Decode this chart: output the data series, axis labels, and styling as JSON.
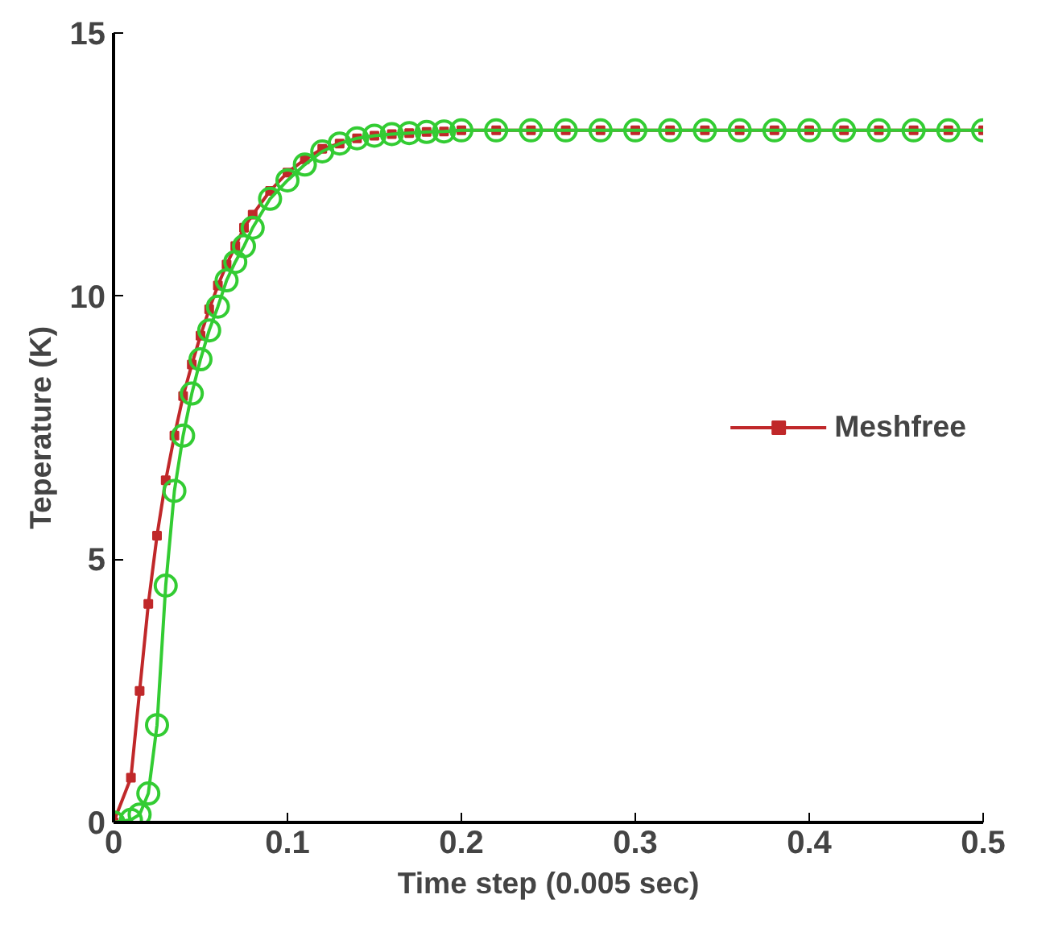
{
  "chart_data": {
    "type": "line",
    "xlabel": "Time step (0.005 sec)",
    "ylabel": "Teperature (K)",
    "xlim": [
      0,
      0.5
    ],
    "ylim": [
      0,
      15
    ],
    "xticks": [
      0,
      0.1,
      0.2,
      0.3,
      0.4,
      0.5
    ],
    "yticks": [
      0,
      5,
      10,
      15
    ],
    "grid": false,
    "legend": "right",
    "series": [
      {
        "name": "Meshfree",
        "color": "#c0282a",
        "marker": "square",
        "x": [
          0,
          0.01,
          0.015,
          0.02,
          0.025,
          0.03,
          0.035,
          0.04,
          0.045,
          0.05,
          0.055,
          0.06,
          0.065,
          0.07,
          0.075,
          0.08,
          0.09,
          0.1,
          0.11,
          0.12,
          0.13,
          0.14,
          0.15,
          0.16,
          0.17,
          0.18,
          0.19,
          0.2,
          0.22,
          0.24,
          0.26,
          0.28,
          0.3,
          0.32,
          0.34,
          0.36,
          0.38,
          0.4,
          0.42,
          0.44,
          0.46,
          0.48,
          0.5
        ],
        "values": [
          0,
          0.85,
          2.5,
          4.15,
          5.45,
          6.5,
          7.35,
          8.1,
          8.7,
          9.25,
          9.75,
          10.2,
          10.6,
          10.95,
          11.3,
          11.55,
          12.0,
          12.35,
          12.6,
          12.8,
          12.9,
          13.0,
          13.05,
          13.08,
          13.1,
          13.12,
          13.13,
          13.15,
          13.15,
          13.15,
          13.15,
          13.15,
          13.15,
          13.15,
          13.15,
          13.15,
          13.15,
          13.15,
          13.15,
          13.15,
          13.15,
          13.15,
          13.15
        ]
      },
      {
        "color": "#33cc33",
        "marker": "circle",
        "x": [
          0,
          0.01,
          0.015,
          0.02,
          0.025,
          0.03,
          0.035,
          0.04,
          0.045,
          0.05,
          0.055,
          0.06,
          0.065,
          0.07,
          0.075,
          0.08,
          0.09,
          0.1,
          0.11,
          0.12,
          0.13,
          0.14,
          0.15,
          0.16,
          0.17,
          0.18,
          0.19,
          0.2,
          0.22,
          0.24,
          0.26,
          0.28,
          0.3,
          0.32,
          0.34,
          0.36,
          0.38,
          0.4,
          0.42,
          0.44,
          0.46,
          0.48,
          0.5
        ],
        "values": [
          0,
          0.05,
          0.15,
          0.55,
          1.85,
          4.5,
          6.3,
          7.35,
          8.15,
          8.8,
          9.35,
          9.8,
          10.3,
          10.65,
          10.95,
          11.3,
          11.85,
          12.2,
          12.5,
          12.75,
          12.9,
          13.0,
          13.05,
          13.08,
          13.1,
          13.12,
          13.13,
          13.15,
          13.15,
          13.15,
          13.15,
          13.15,
          13.15,
          13.15,
          13.15,
          13.15,
          13.15,
          13.15,
          13.15,
          13.15,
          13.15,
          13.15,
          13.15
        ]
      }
    ]
  }
}
